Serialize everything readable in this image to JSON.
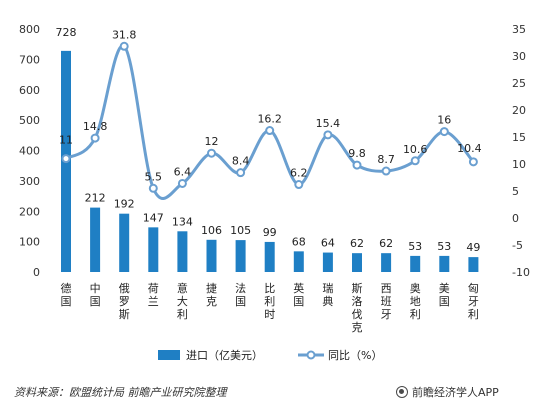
{
  "chart_data": {
    "type": "bar",
    "categories": [
      "德国",
      "中国",
      "俄罗斯",
      "荷兰",
      "意大利",
      "捷克",
      "法国",
      "比利时",
      "英国",
      "瑞典",
      "斯洛伐克",
      "西班牙",
      "奥地利",
      "美国",
      "匈牙利"
    ],
    "series": [
      {
        "name": "进口（亿美元）",
        "type": "bar",
        "axis": "left",
        "color": "#1f7fc4",
        "values": [
          728,
          212,
          192,
          147,
          134,
          106,
          105,
          99,
          68,
          64,
          62,
          62,
          53,
          53,
          49
        ]
      },
      {
        "name": "同比（%）",
        "type": "line",
        "axis": "right",
        "color": "#6a9fd0",
        "values": [
          11,
          14.8,
          31.8,
          5.5,
          6.4,
          12,
          8.4,
          16.2,
          6.2,
          15.4,
          9.8,
          8.7,
          10.6,
          16,
          10.4
        ]
      }
    ],
    "y_left": {
      "min": 0,
      "max": 800,
      "ticks": [
        0,
        100,
        200,
        300,
        400,
        500,
        600,
        700,
        800
      ]
    },
    "y_right": {
      "min": -10,
      "max": 35,
      "ticks": [
        -10,
        -5,
        0,
        5,
        10,
        15,
        20,
        25,
        30,
        35
      ]
    },
    "legend_position": "bottom-center",
    "grid": false
  },
  "footer": {
    "source": "资料来源：欧盟统计局 前瞻产业研究院整理",
    "brand": "前瞻经济学人APP"
  }
}
